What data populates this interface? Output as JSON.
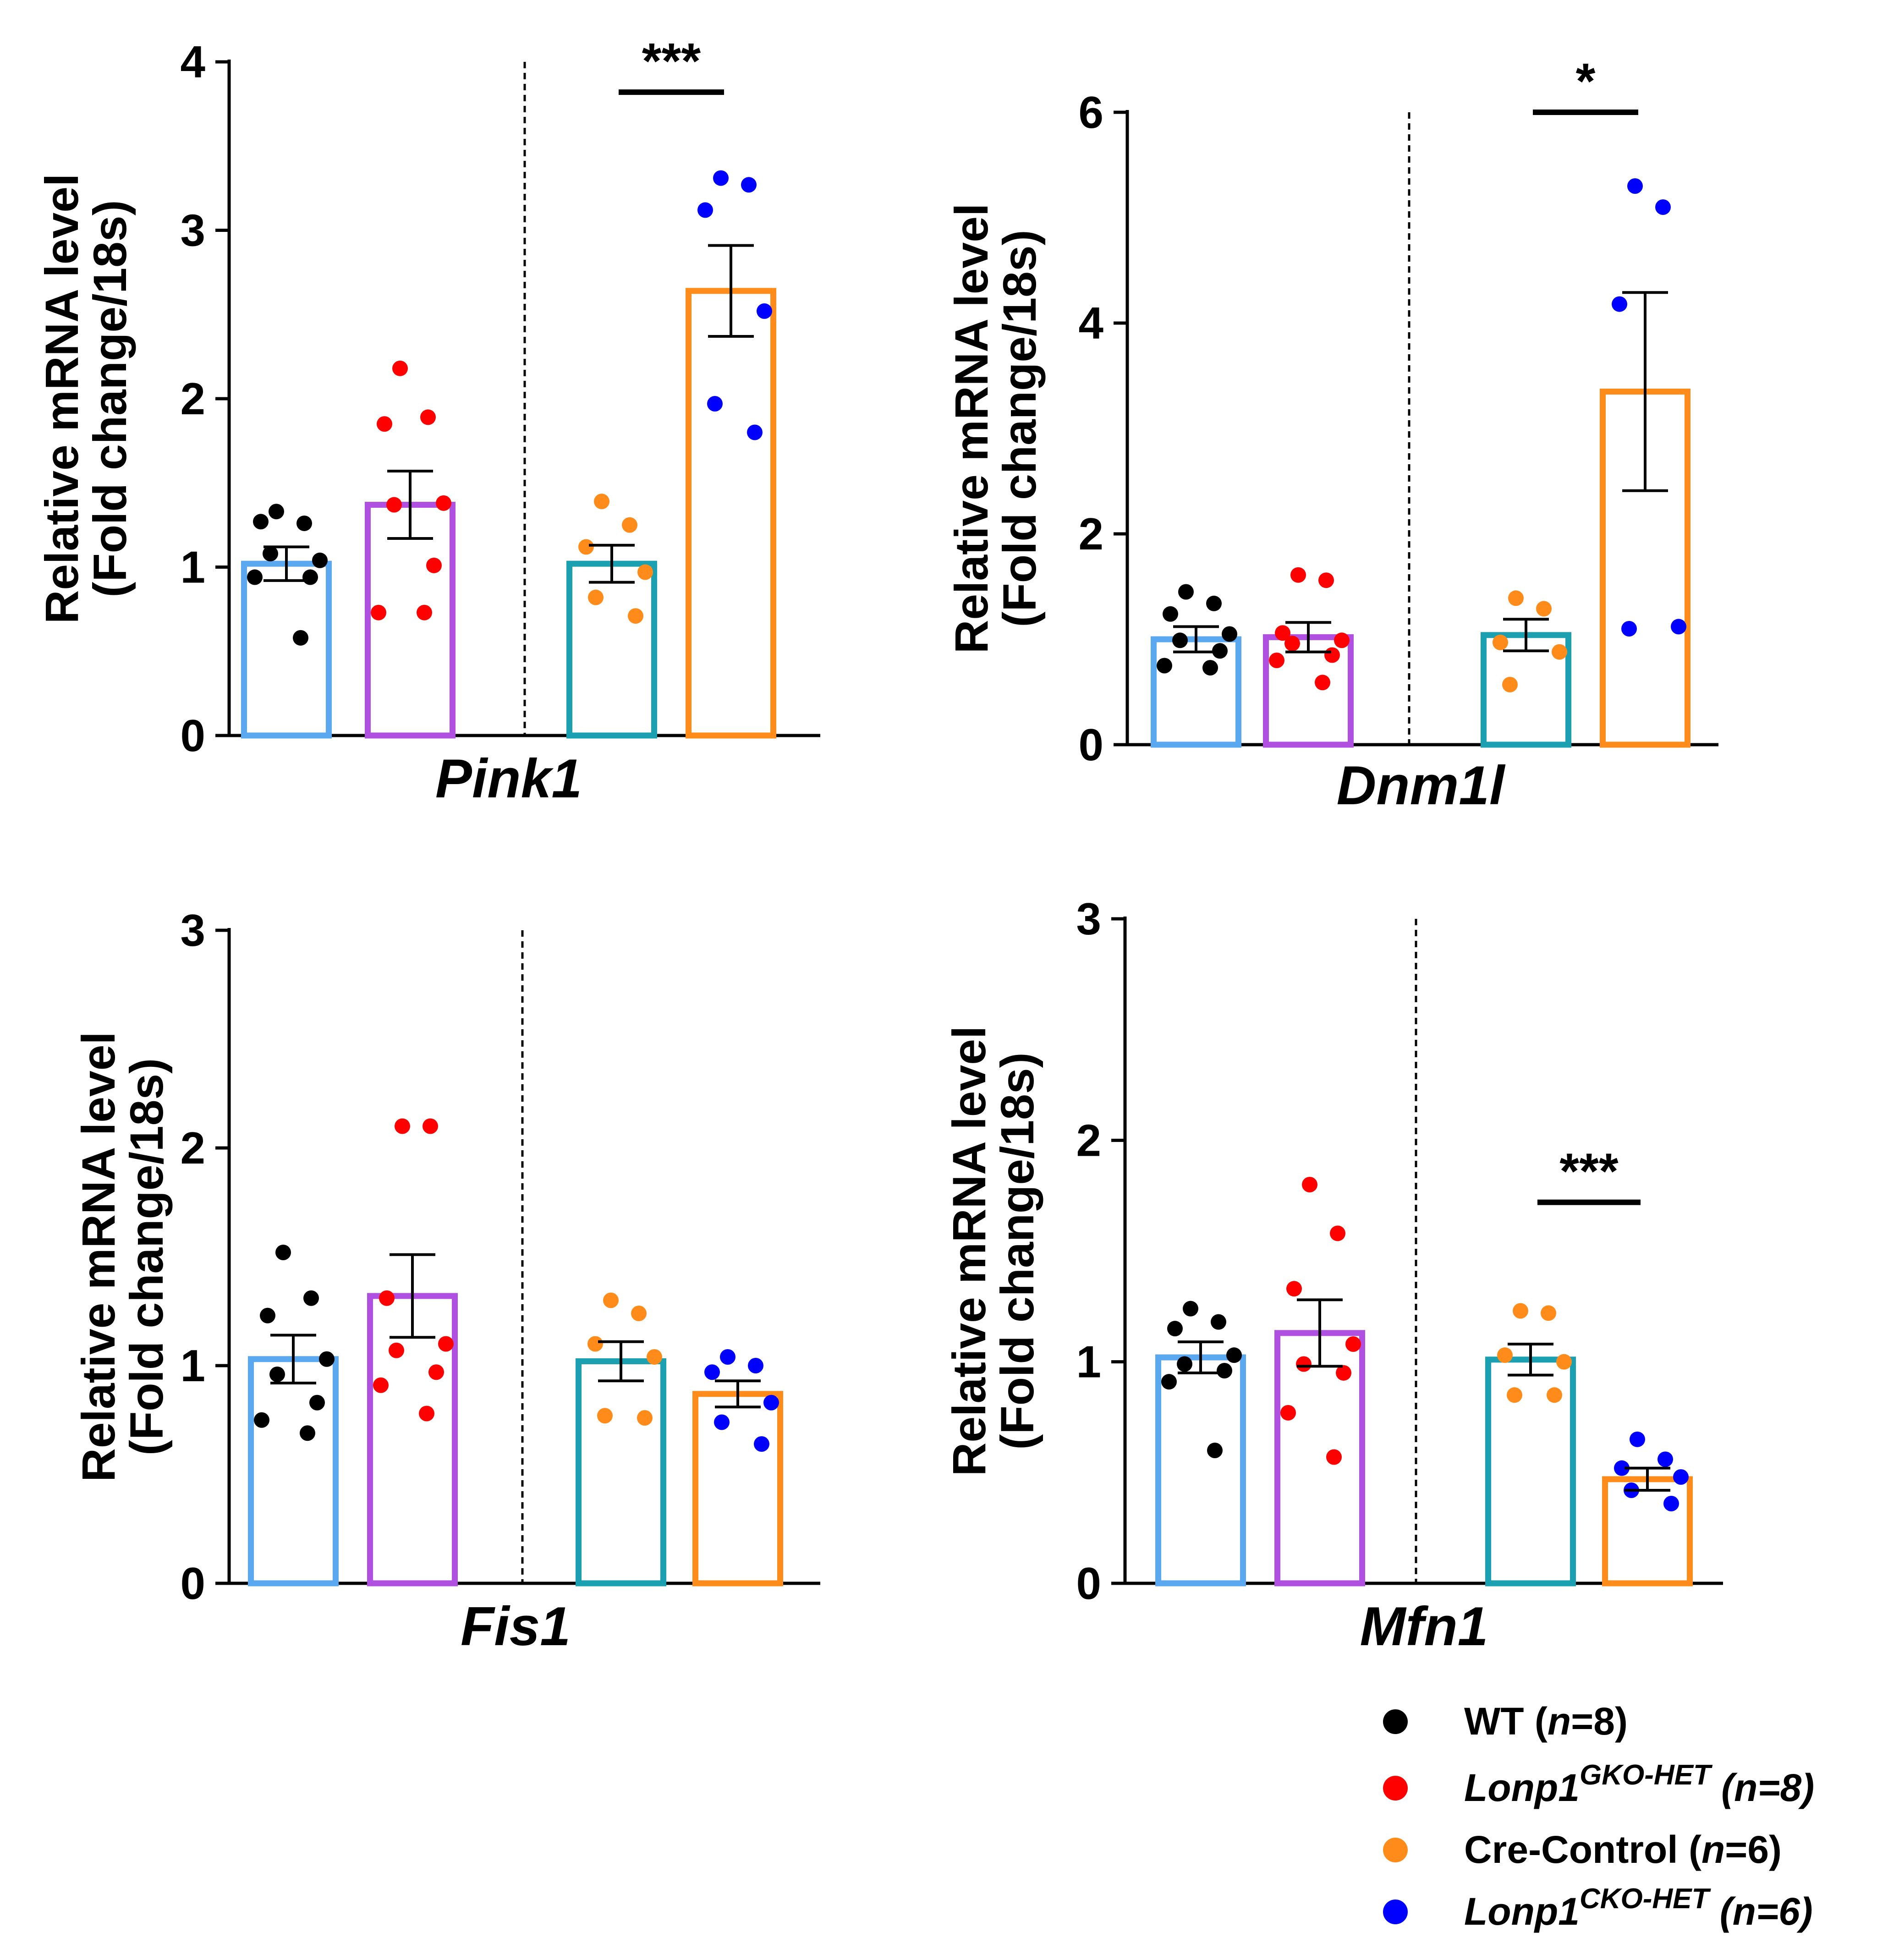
{
  "figure": {
    "y_axis_title_line1": "Relative mRNA level",
    "y_axis_title_line2": "(Fold change/18s)"
  },
  "legend": {
    "items": [
      {
        "pre": "WT (",
        "n_italic": "n",
        "post": "=8)",
        "color": "#000000"
      },
      {
        "gene": "Lonp1",
        "sup": "GKO-HET",
        "pre": " (",
        "n_italic": "n",
        "post": "=8)",
        "color": "#ff0000",
        "italic_all": true
      },
      {
        "pre": "Cre-Control (",
        "n_italic": "n",
        "post": "=6)",
        "color": "#ff8c1a"
      },
      {
        "gene": "Lonp1",
        "sup": "CKO-HET",
        "pre": " (",
        "n_italic": "n",
        "post": "=6)",
        "color": "#0000ff",
        "italic_all": true
      }
    ]
  },
  "bar_colors": [
    "#5aa9f0",
    "#b050e0",
    "#1aa0b0",
    "#ff8c1a"
  ],
  "chart_data": [
    {
      "type": "bar",
      "gene": "Pink1",
      "ylim": [
        0,
        4
      ],
      "yticks": [
        0,
        1,
        2,
        3,
        4
      ],
      "ylabel": "Relative mRNA level (Fold change/18s)",
      "bars": [
        {
          "mean": 1.02,
          "sem": 0.1,
          "point_color": "#000000",
          "points": [
            1.33,
            1.26,
            1.27,
            1.04,
            1.08,
            0.94,
            0.94,
            0.58
          ]
        },
        {
          "mean": 1.37,
          "sem": 0.2,
          "point_color": "#ff0000",
          "points": [
            2.18,
            1.89,
            1.85,
            1.38,
            1.37,
            1.01,
            0.73,
            0.73
          ]
        },
        {
          "mean": 1.02,
          "sem": 0.11,
          "point_color": "#ff8c1a",
          "points": [
            1.39,
            1.25,
            1.12,
            0.97,
            0.82,
            0.71
          ]
        },
        {
          "mean": 2.64,
          "sem": 0.27,
          "point_color": "#0000ff",
          "points": [
            3.31,
            3.27,
            3.12,
            2.52,
            1.97,
            1.8
          ]
        }
      ],
      "significance": {
        "label": "***",
        "between": [
          2,
          3
        ],
        "y": 3.82
      }
    },
    {
      "type": "bar",
      "gene": "Dnm1l",
      "ylim": [
        0,
        6
      ],
      "yticks": [
        0,
        2,
        4,
        6
      ],
      "ylabel": "Relative mRNA level (Fold change/18s)",
      "bars": [
        {
          "mean": 1.0,
          "sem": 0.12,
          "point_color": "#000000",
          "points": [
            1.45,
            1.34,
            1.24,
            1.05,
            0.99,
            0.89,
            0.75,
            0.73
          ]
        },
        {
          "mean": 1.02,
          "sem": 0.14,
          "point_color": "#ff0000",
          "points": [
            1.61,
            1.56,
            1.06,
            0.99,
            0.96,
            0.85,
            0.8,
            0.59
          ]
        },
        {
          "mean": 1.04,
          "sem": 0.15,
          "point_color": "#ff8c1a",
          "points": [
            1.39,
            1.29,
            0.97,
            0.88,
            0.57
          ]
        },
        {
          "mean": 3.35,
          "sem": 0.94,
          "point_color": "#0000ff",
          "points": [
            5.3,
            5.1,
            4.18,
            1.12,
            1.1
          ]
        }
      ],
      "significance": {
        "label": "*",
        "between": [
          2,
          3
        ],
        "y": 6.0
      }
    },
    {
      "type": "bar",
      "gene": "Fis1",
      "ylim": [
        0,
        3
      ],
      "yticks": [
        0,
        1,
        2,
        3
      ],
      "ylabel": "Relative mRNA level (Fold change/18s)",
      "bars": [
        {
          "mean": 1.03,
          "sem": 0.11,
          "point_color": "#000000",
          "points": [
            1.52,
            1.31,
            1.23,
            1.03,
            0.96,
            0.83,
            0.75,
            0.69
          ]
        },
        {
          "mean": 1.32,
          "sem": 0.19,
          "point_color": "#ff0000",
          "points": [
            2.1,
            2.1,
            1.31,
            1.1,
            1.07,
            0.97,
            0.91,
            0.78
          ]
        },
        {
          "mean": 1.02,
          "sem": 0.09,
          "point_color": "#ff8c1a",
          "points": [
            1.3,
            1.24,
            1.1,
            1.04,
            0.77,
            0.76
          ]
        },
        {
          "mean": 0.87,
          "sem": 0.06,
          "point_color": "#0000ff",
          "points": [
            1.04,
            1.0,
            0.97,
            0.83,
            0.74,
            0.64
          ]
        }
      ],
      "significance": null
    },
    {
      "type": "bar",
      "gene": "Mfn1",
      "ylim": [
        0,
        3
      ],
      "yticks": [
        0,
        1,
        2,
        3
      ],
      "ylabel": "Relative mRNA level (Fold change/18s)",
      "bars": [
        {
          "mean": 1.02,
          "sem": 0.07,
          "point_color": "#000000",
          "points": [
            1.24,
            1.18,
            1.15,
            1.03,
            0.99,
            0.96,
            0.91,
            0.6
          ]
        },
        {
          "mean": 1.13,
          "sem": 0.15,
          "point_color": "#ff0000",
          "points": [
            1.8,
            1.58,
            1.33,
            1.08,
            0.99,
            0.95,
            0.77,
            0.57
          ]
        },
        {
          "mean": 1.01,
          "sem": 0.07,
          "point_color": "#ff8c1a",
          "points": [
            1.23,
            1.22,
            1.03,
            1.0,
            0.85,
            0.85
          ]
        },
        {
          "mean": 0.47,
          "sem": 0.05,
          "point_color": "#0000ff",
          "points": [
            0.65,
            0.56,
            0.52,
            0.48,
            0.42,
            0.36
          ]
        }
      ],
      "significance": {
        "label": "***",
        "between": [
          2,
          3
        ],
        "y": 1.72
      }
    }
  ]
}
